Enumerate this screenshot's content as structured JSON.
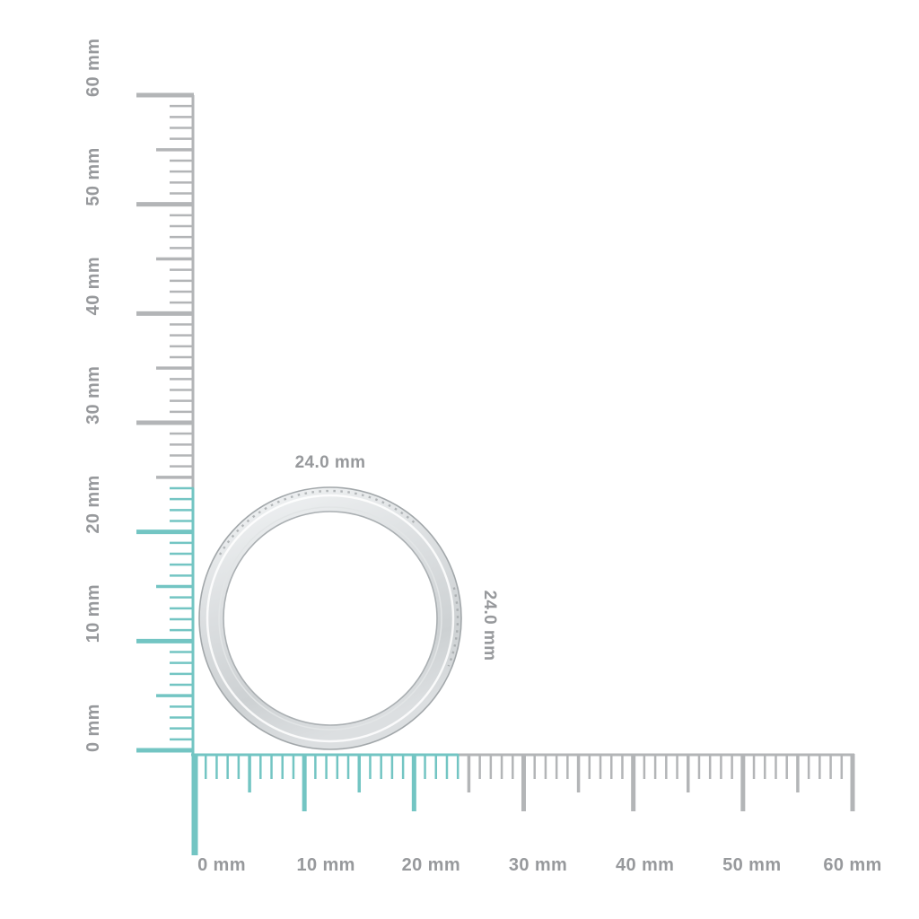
{
  "page": {
    "background_color": "#ffffff"
  },
  "rulers": {
    "unit": "mm",
    "highlight_color": "#73c5c3",
    "tick_color": "#b3b5b7",
    "label_color": "#97999c",
    "vertical": {
      "min_mm": 0,
      "max_mm": 60,
      "major_step_mm": 10,
      "medium_step_mm": 5,
      "minor_step_mm": 1,
      "highlight_extent_mm": 24,
      "major_labels": [
        "0 mm",
        "10 mm",
        "20 mm",
        "30 mm",
        "40 mm",
        "50 mm",
        "60 mm"
      ]
    },
    "horizontal": {
      "min_mm": 0,
      "max_mm": 60,
      "major_step_mm": 10,
      "medium_step_mm": 5,
      "minor_step_mm": 1,
      "highlight_extent_mm": 24,
      "major_labels": [
        "0 mm",
        "10 mm",
        "20 mm",
        "30 mm",
        "40 mm",
        "50 mm",
        "60 mm"
      ]
    }
  },
  "object": {
    "kind": "ring-band",
    "width_label": "24.0 mm",
    "height_label": "24.0 mm",
    "diameter_mm": 24.0,
    "label_color": "#97999c",
    "metal": {
      "light": "#f3f5f6",
      "mid": "#dcdfe1",
      "deep": "#cdd1d3",
      "edge": "#a2a7aa",
      "inner_edge": "#aaafb2",
      "stone_fleck": "#9ba0a3"
    }
  }
}
